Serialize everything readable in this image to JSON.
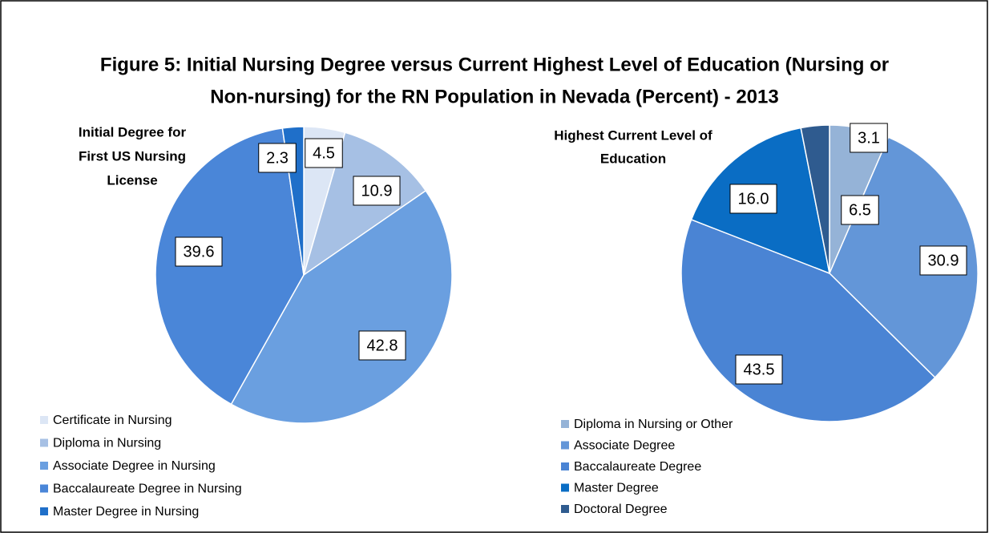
{
  "title": [
    "Figure 5: Initial Nursing Degree versus Current Highest Level of Education (Nursing or",
    "Non-nursing) for the RN Population in Nevada (Percent) - 2013"
  ],
  "chart_data": [
    {
      "type": "pie",
      "subtitle": [
        "Initial Degree for",
        "First US Nursing",
        "License"
      ],
      "categories": [
        "Certificate in Nursing",
        "Diploma in Nursing",
        "Associate Degree in Nursing",
        "Baccalaureate Degree in Nursing",
        "Master Degree in Nursing"
      ],
      "values": [
        4.5,
        10.9,
        42.8,
        39.6,
        2.3
      ],
      "colors": [
        "#dce6f5",
        "#a6c0e4",
        "#6a9fe0",
        "#4a86d8",
        "#1f6fc9"
      ]
    },
    {
      "type": "pie",
      "subtitle": [
        "Highest Current Level of",
        "Education"
      ],
      "categories": [
        "Diploma in Nursing or Other",
        "Associate Degree",
        "Baccalaureate Degree",
        "Master Degree",
        "Doctoral Degree"
      ],
      "values": [
        6.5,
        30.9,
        43.5,
        16.0,
        3.1
      ],
      "value_labels": [
        "6.5",
        "30.9",
        "43.5",
        "16.0",
        "3.1"
      ],
      "colors": [
        "#95b3d7",
        "#6396d8",
        "#4a84d4",
        "#0a6dc4",
        "#2f5b8f"
      ]
    }
  ]
}
